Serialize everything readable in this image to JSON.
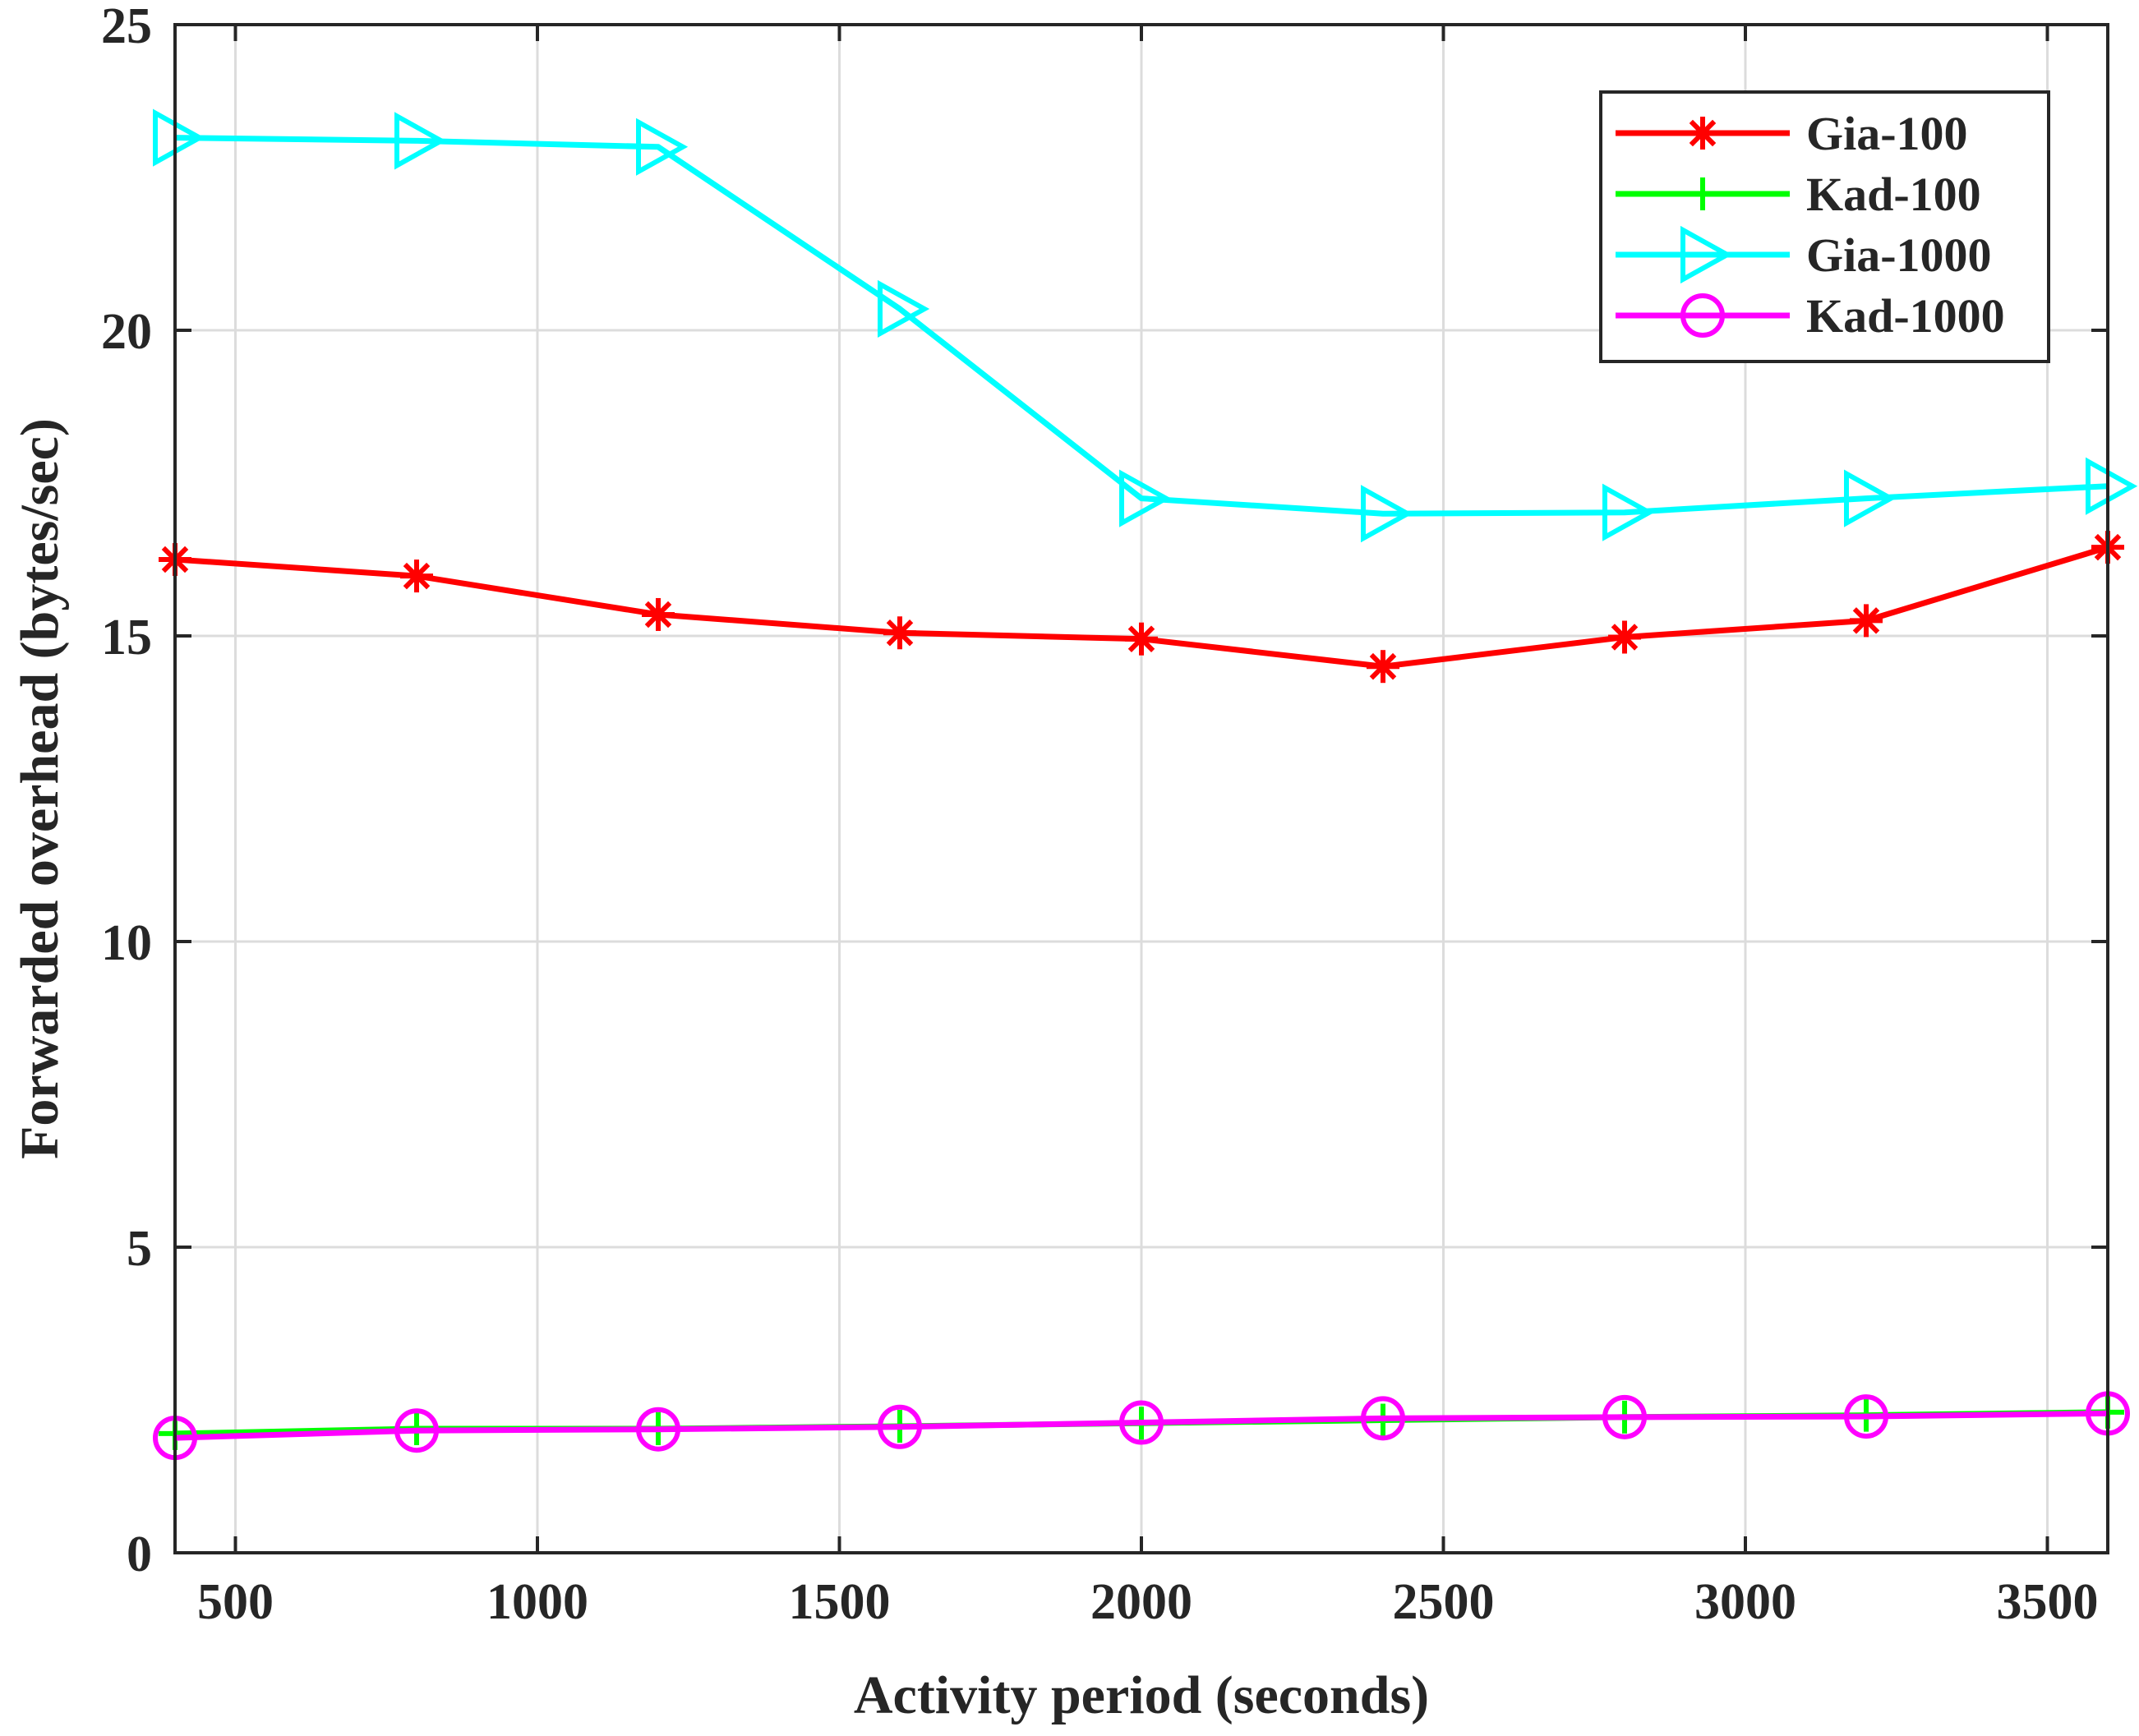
{
  "chart_data": {
    "type": "line",
    "title": "",
    "xlabel": "Activity period (seconds)",
    "ylabel": "Forwarded overhead (bytes/sec)",
    "xlim": [
      400,
      3600
    ],
    "ylim": [
      0,
      25
    ],
    "xticks": [
      500,
      1000,
      1500,
      2000,
      2500,
      3000,
      3500
    ],
    "yticks": [
      0,
      5,
      10,
      15,
      20,
      25
    ],
    "grid": true,
    "legend_position": "top-right",
    "x": [
      400,
      800,
      1200,
      1600,
      2000,
      2400,
      2800,
      3200,
      3600
    ],
    "series": [
      {
        "name": "Gia-100",
        "color": "#ff0000",
        "marker": "asterisk",
        "values": [
          16.25,
          15.98,
          15.35,
          15.05,
          14.95,
          14.5,
          14.98,
          15.25,
          16.45
        ]
      },
      {
        "name": "Kad-100",
        "color": "#00ff00",
        "marker": "plus",
        "values": [
          1.95,
          2.03,
          2.03,
          2.07,
          2.12,
          2.17,
          2.22,
          2.25,
          2.3
        ]
      },
      {
        "name": "Gia-1000",
        "color": "#00ffff",
        "marker": "triangle-right",
        "values": [
          23.15,
          23.1,
          23.0,
          20.35,
          17.25,
          17.0,
          17.02,
          17.25,
          17.45
        ]
      },
      {
        "name": "Kad-1000",
        "color": "#ff00ff",
        "marker": "circle",
        "values": [
          1.88,
          2.0,
          2.02,
          2.06,
          2.13,
          2.2,
          2.22,
          2.23,
          2.28
        ]
      }
    ]
  }
}
